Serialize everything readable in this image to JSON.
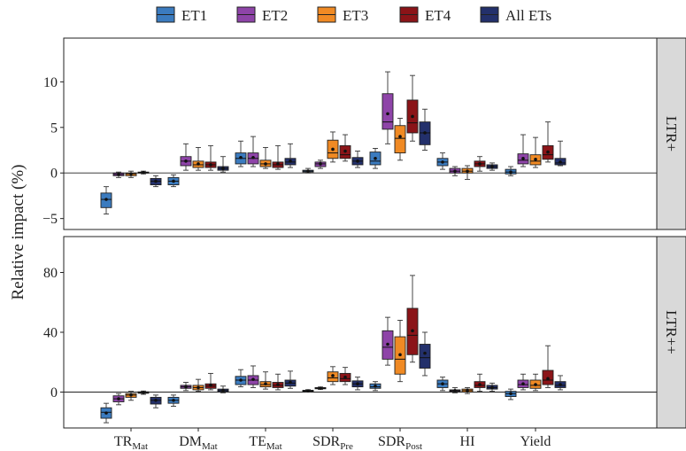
{
  "legend": {
    "entries": [
      {
        "label": "ET1",
        "color": "#3b7bbf"
      },
      {
        "label": "ET2",
        "color": "#8e44a8"
      },
      {
        "label": "ET3",
        "color": "#f08a24"
      },
      {
        "label": "ET4",
        "color": "#8b1418"
      },
      {
        "label": "All ETs",
        "color": "#23306b"
      }
    ]
  },
  "chart_data": {
    "type": "box",
    "ylabel": "Relative impact (%)",
    "categories": [
      {
        "base": "TR",
        "sub": "Mat"
      },
      {
        "base": "DM",
        "sub": "Mat"
      },
      {
        "base": "TE",
        "sub": "Mat"
      },
      {
        "base": "SDR",
        "sub": "Pre"
      },
      {
        "base": "SDR",
        "sub": "Post"
      },
      {
        "base": "HI",
        "sub": ""
      },
      {
        "base": "Yield",
        "sub": ""
      }
    ],
    "series": [
      "ET1",
      "ET2",
      "ET3",
      "ET4",
      "All ETs"
    ],
    "panels": [
      {
        "label": "LTR+",
        "ylim": [
          -6.2,
          14.8
        ],
        "ticks": [
          -5,
          0,
          5,
          10
        ],
        "tick_labels": [
          "−5",
          "0",
          "5",
          "10"
        ],
        "data": [
          [
            {
              "min": -4.5,
              "q1": -3.8,
              "med": -2.9,
              "q3": -2.2,
              "max": -1.5,
              "mean": -2.9
            },
            {
              "min": -0.5,
              "q1": -0.3,
              "med": -0.15,
              "q3": 0.0,
              "max": 0.1,
              "mean": -0.15
            },
            {
              "min": -0.5,
              "q1": -0.3,
              "med": -0.1,
              "q3": 0.0,
              "max": 0.2,
              "mean": -0.1
            },
            {
              "min": -0.1,
              "q1": 0.0,
              "med": 0.05,
              "q3": 0.1,
              "max": 0.2,
              "mean": 0.05
            },
            {
              "min": -1.5,
              "q1": -1.3,
              "med": -0.9,
              "q3": -0.6,
              "max": -0.3,
              "mean": -0.9
            }
          ],
          [
            {
              "min": -1.5,
              "q1": -1.3,
              "med": -0.9,
              "q3": -0.5,
              "max": -0.2,
              "mean": -0.9
            },
            {
              "min": 0.3,
              "q1": 0.8,
              "med": 1.3,
              "q3": 1.8,
              "max": 3.2,
              "mean": 1.3
            },
            {
              "min": 0.3,
              "q1": 0.6,
              "med": 0.9,
              "q3": 1.3,
              "max": 2.8,
              "mean": 1.0
            },
            {
              "min": 0.3,
              "q1": 0.6,
              "med": 0.9,
              "q3": 1.2,
              "max": 3.0,
              "mean": 0.9
            },
            {
              "min": 0.1,
              "q1": 0.3,
              "med": 0.5,
              "q3": 0.7,
              "max": 1.8,
              "mean": 0.5
            }
          ],
          [
            {
              "min": 0.7,
              "q1": 1.0,
              "med": 1.6,
              "q3": 2.2,
              "max": 3.5,
              "mean": 1.7
            },
            {
              "min": 0.7,
              "q1": 1.0,
              "med": 1.6,
              "q3": 2.2,
              "max": 4.0,
              "mean": 1.7
            },
            {
              "min": 0.5,
              "q1": 0.7,
              "med": 1.0,
              "q3": 1.4,
              "max": 2.8,
              "mean": 1.0
            },
            {
              "min": 0.4,
              "q1": 0.6,
              "med": 0.9,
              "q3": 1.2,
              "max": 3.0,
              "mean": 1.0
            },
            {
              "min": 0.6,
              "q1": 0.9,
              "med": 1.2,
              "q3": 1.6,
              "max": 3.2,
              "mean": 1.3
            }
          ],
          [
            {
              "min": 0.0,
              "q1": 0.1,
              "med": 0.2,
              "q3": 0.3,
              "max": 0.5,
              "mean": 0.2
            },
            {
              "min": 0.5,
              "q1": 0.7,
              "med": 1.0,
              "q3": 1.2,
              "max": 1.4,
              "mean": 1.0
            },
            {
              "min": 1.2,
              "q1": 1.6,
              "med": 2.2,
              "q3": 3.6,
              "max": 4.5,
              "mean": 2.6
            },
            {
              "min": 1.3,
              "q1": 1.6,
              "med": 2.0,
              "q3": 3.0,
              "max": 4.2,
              "mean": 2.4
            },
            {
              "min": 0.6,
              "q1": 0.9,
              "med": 1.3,
              "q3": 1.7,
              "max": 2.4,
              "mean": 1.3
            }
          ],
          [
            {
              "min": 0.5,
              "q1": 0.9,
              "med": 1.3,
              "q3": 2.3,
              "max": 2.7,
              "mean": 1.6
            },
            {
              "min": 3.2,
              "q1": 4.8,
              "med": 5.6,
              "q3": 8.7,
              "max": 11.1,
              "mean": 6.5
            },
            {
              "min": 1.4,
              "q1": 2.2,
              "med": 3.8,
              "q3": 5.2,
              "max": 6.0,
              "mean": 4.0
            },
            {
              "min": 3.5,
              "q1": 4.4,
              "med": 5.5,
              "q3": 8.0,
              "max": 10.7,
              "mean": 6.2
            },
            {
              "min": 2.5,
              "q1": 3.1,
              "med": 4.4,
              "q3": 5.6,
              "max": 7.0,
              "mean": 4.4
            }
          ],
          [
            {
              "min": 0.4,
              "q1": 0.8,
              "med": 1.2,
              "q3": 1.6,
              "max": 2.2,
              "mean": 1.2
            },
            {
              "min": -0.3,
              "q1": 0.0,
              "med": 0.2,
              "q3": 0.5,
              "max": 0.7,
              "mean": 0.2
            },
            {
              "min": -0.7,
              "q1": 0.0,
              "med": 0.2,
              "q3": 0.5,
              "max": 0.8,
              "mean": 0.2
            },
            {
              "min": 0.2,
              "q1": 0.7,
              "med": 1.0,
              "q3": 1.3,
              "max": 1.8,
              "mean": 1.0
            },
            {
              "min": 0.3,
              "q1": 0.5,
              "med": 0.7,
              "q3": 0.9,
              "max": 1.1,
              "mean": 0.7
            }
          ],
          [
            {
              "min": -0.3,
              "q1": -0.1,
              "med": 0.1,
              "q3": 0.4,
              "max": 0.7,
              "mean": 0.1
            },
            {
              "min": 0.7,
              "q1": 1.0,
              "med": 1.4,
              "q3": 2.1,
              "max": 4.2,
              "mean": 1.6
            },
            {
              "min": 0.6,
              "q1": 0.9,
              "med": 1.3,
              "q3": 2.0,
              "max": 3.9,
              "mean": 1.5
            },
            {
              "min": 1.2,
              "q1": 1.5,
              "med": 2.0,
              "q3": 3.0,
              "max": 5.6,
              "mean": 2.3
            },
            {
              "min": 0.8,
              "q1": 0.9,
              "med": 1.1,
              "q3": 1.6,
              "max": 3.5,
              "mean": 1.2
            }
          ]
        ]
      },
      {
        "label": "LTR++",
        "ylim": [
          -24,
          104
        ],
        "ticks": [
          0,
          40,
          80
        ],
        "tick_labels": [
          "0",
          "40",
          "80"
        ],
        "data": [
          [
            {
              "min": -20.5,
              "q1": -17.5,
              "med": -13.5,
              "q3": -10.5,
              "max": -7.5,
              "mean": -14
            },
            {
              "min": -8.5,
              "q1": -6.5,
              "med": -4.5,
              "q3": -2.5,
              "max": -1.0,
              "mean": -4.5
            },
            {
              "min": -5.5,
              "q1": -3.5,
              "med": -2.0,
              "q3": -1.0,
              "max": 0.5,
              "mean": -2.0
            },
            {
              "min": -1.5,
              "q1": -0.8,
              "med": -0.3,
              "q3": 0.2,
              "max": 0.7,
              "mean": -0.3
            },
            {
              "min": -10.5,
              "q1": -8.0,
              "med": -5.5,
              "q3": -3.5,
              "max": -2.0,
              "mean": -5.5
            }
          ],
          [
            {
              "min": -9.5,
              "q1": -7.5,
              "med": -5.5,
              "q3": -3.5,
              "max": -2.0,
              "mean": -5.5
            },
            {
              "min": 1.0,
              "q1": 2.5,
              "med": 3.5,
              "q3": 4.5,
              "max": 6.5,
              "mean": 3.5
            },
            {
              "min": 0.5,
              "q1": 1.5,
              "med": 3.0,
              "q3": 4.5,
              "max": 8.5,
              "mean": 3.0
            },
            {
              "min": 1.5,
              "q1": 2.5,
              "med": 4.0,
              "q3": 5.5,
              "max": 12.5,
              "mean": 4.5
            },
            {
              "min": -0.5,
              "q1": 0.2,
              "med": 1.0,
              "q3": 2.0,
              "max": 4.0,
              "mean": 1.0
            }
          ],
          [
            {
              "min": 3.5,
              "q1": 5.0,
              "med": 8.0,
              "q3": 10.5,
              "max": 15.0,
              "mean": 8.0
            },
            {
              "min": 3.0,
              "q1": 5.0,
              "med": 8.0,
              "q3": 11.0,
              "max": 17.5,
              "mean": 8.5
            },
            {
              "min": 2.0,
              "q1": 3.5,
              "med": 5.0,
              "q3": 7.0,
              "max": 13.5,
              "mean": 5.5
            },
            {
              "min": 1.5,
              "q1": 3.0,
              "med": 4.5,
              "q3": 6.5,
              "max": 12.0,
              "mean": 5.0
            },
            {
              "min": 2.5,
              "q1": 4.0,
              "med": 6.0,
              "q3": 8.0,
              "max": 14.0,
              "mean": 6.5
            }
          ],
          [
            {
              "min": 0.0,
              "q1": 0.4,
              "med": 0.8,
              "q3": 1.2,
              "max": 1.6,
              "mean": 0.8
            },
            {
              "min": 1.8,
              "q1": 2.2,
              "med": 2.6,
              "q3": 3.0,
              "max": 3.4,
              "mean": 2.6
            },
            {
              "min": 5.0,
              "q1": 7.0,
              "med": 9.5,
              "q3": 13.5,
              "max": 17.0,
              "mean": 11.0
            },
            {
              "min": 5.0,
              "q1": 7.0,
              "med": 9.0,
              "q3": 12.5,
              "max": 16.5,
              "mean": 10.0
            },
            {
              "min": 1.5,
              "q1": 3.5,
              "med": 5.5,
              "q3": 7.5,
              "max": 10.0,
              "mean": 5.5
            }
          ],
          [
            {
              "min": 1.0,
              "q1": 2.5,
              "med": 3.5,
              "q3": 5.5,
              "max": 7.0,
              "mean": 4.0
            },
            {
              "min": 18.0,
              "q1": 22.0,
              "med": 30.0,
              "q3": 41.0,
              "max": 50.0,
              "mean": 32.0
            },
            {
              "min": 7.0,
              "q1": 12.0,
              "med": 22.0,
              "q3": 37.0,
              "max": 48.0,
              "mean": 25.0
            },
            {
              "min": 20.0,
              "q1": 25.0,
              "med": 38.0,
              "q3": 56.0,
              "max": 78.0,
              "mean": 41.0
            },
            {
              "min": 11.0,
              "q1": 16.0,
              "med": 23.0,
              "q3": 32.0,
              "max": 40.0,
              "mean": 26.0
            }
          ],
          [
            {
              "min": 1.0,
              "q1": 3.0,
              "med": 5.5,
              "q3": 8.0,
              "max": 10.0,
              "mean": 5.5
            },
            {
              "min": -0.5,
              "q1": 0.5,
              "med": 1.0,
              "q3": 1.5,
              "max": 3.0,
              "mean": 1.0
            },
            {
              "min": -1.0,
              "q1": 0.0,
              "med": 1.0,
              "q3": 2.0,
              "max": 3.0,
              "mean": 1.0
            },
            {
              "min": 0.5,
              "q1": 3.0,
              "med": 4.5,
              "q3": 7.0,
              "max": 12.0,
              "mean": 5.0
            },
            {
              "min": 0.5,
              "q1": 2.0,
              "med": 3.0,
              "q3": 4.5,
              "max": 6.0,
              "mean": 3.0
            }
          ],
          [
            {
              "min": -5.0,
              "q1": -3.0,
              "med": -1.0,
              "q3": 0.5,
              "max": 2.0,
              "mean": -1.0
            },
            {
              "min": 1.5,
              "q1": 3.0,
              "med": 5.0,
              "q3": 8.0,
              "max": 12.0,
              "mean": 5.5
            },
            {
              "min": 1.0,
              "q1": 2.5,
              "med": 4.5,
              "q3": 8.0,
              "max": 12.0,
              "mean": 5.0
            },
            {
              "min": 3.0,
              "q1": 5.0,
              "med": 8.0,
              "q3": 14.5,
              "max": 31.0,
              "mean": 9.0
            },
            {
              "min": 1.5,
              "q1": 3.0,
              "med": 4.5,
              "q3": 7.0,
              "max": 11.0,
              "mean": 5.0
            }
          ]
        ]
      }
    ]
  }
}
